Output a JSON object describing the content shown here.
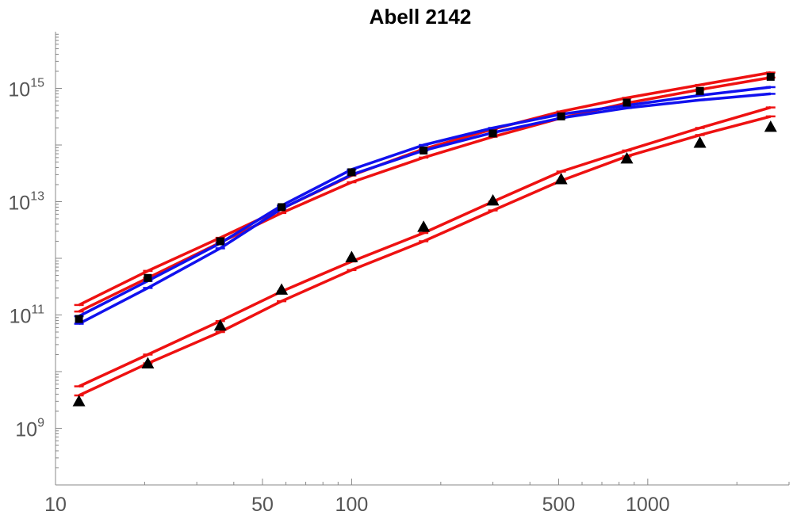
{
  "chart_data": {
    "type": "line",
    "title": "Abell 2142",
    "xlabel": "",
    "ylabel": "",
    "x_scale": "log",
    "y_scale": "log",
    "xlim": [
      10,
      3000
    ],
    "ylim": [
      100000000.0,
      1e+16
    ],
    "x_ticks": [
      {
        "value": 10,
        "label": "10"
      },
      {
        "value": 50,
        "label": "50"
      },
      {
        "value": 100,
        "label": "100"
      },
      {
        "value": 500,
        "label": "500"
      },
      {
        "value": 1000,
        "label": "1000"
      }
    ],
    "y_ticks": [
      {
        "value": 1000000000.0,
        "base": "10",
        "exp": "9"
      },
      {
        "value": 100000000000.0,
        "base": "10",
        "exp": "11"
      },
      {
        "value": 10000000000000.0,
        "base": "10",
        "exp": "13"
      },
      {
        "value": 1000000000000000.0,
        "base": "10",
        "exp": "15"
      }
    ],
    "grid": false,
    "colors": {
      "red": "#ee1111",
      "blue": "#1111ee",
      "black": "#000000"
    },
    "x": [
      12,
      20.5,
      36,
      58,
      100,
      175,
      300,
      510,
      850,
      1500,
      2600
    ],
    "series": [
      {
        "color": "red",
        "values": [
          150000000000.0,
          600000000000.0,
          2300000000000.0,
          7500000000000.0,
          29000000000000.0,
          85000000000000.0,
          190000000000000.0,
          390000000000000.0,
          680000000000000.0,
          1150000000000000.0,
          1900000000000000.0
        ]
      },
      {
        "color": "red",
        "values": [
          115000000000.0,
          450000000000.0,
          1900000000000.0,
          6300000000000.0,
          22000000000000.0,
          60000000000000.0,
          140000000000000.0,
          300000000000000.0,
          550000000000000.0,
          950000000000000.0,
          1550000000000000.0
        ]
      },
      {
        "color": "blue",
        "values": [
          95000000000.0,
          400000000000.0,
          1850000000000.0,
          8500000000000.0,
          37000000000000.0,
          100000000000000.0,
          200000000000000.0,
          350000000000000.0,
          500000000000000.0,
          750000000000000.0,
          1050000000000000.0
        ]
      },
      {
        "color": "blue",
        "values": [
          70000000000.0,
          300000000000.0,
          1500000000000.0,
          7500000000000.0,
          30000000000000.0,
          80000000000000.0,
          165000000000000.0,
          300000000000000.0,
          450000000000000.0,
          620000000000000.0,
          800000000000000.0
        ]
      },
      {
        "color": "red",
        "values": [
          5500000000.0,
          20000000000.0,
          78000000000.0,
          260000000000.0,
          880000000000.0,
          2800000000000.0,
          10000000000000.0,
          34000000000000.0,
          80000000000000.0,
          200000000000000.0,
          460000000000000.0
        ]
      },
      {
        "color": "red",
        "values": [
          3800000000.0,
          14000000000.0,
          50000000000.0,
          175000000000.0,
          620000000000.0,
          2000000000000.0,
          7000000000000.0,
          23500000000000.0,
          63000000000000.0,
          150000000000000.0,
          320000000000000.0
        ]
      }
    ],
    "markers": [
      {
        "shape": "square",
        "color": "black",
        "x": [
          12,
          20.5,
          36,
          58,
          100,
          175,
          300,
          510,
          850,
          1500,
          2600
        ],
        "values": [
          85000000000.0,
          450000000000.0,
          2000000000000.0,
          8000000000000.0,
          33000000000000.0,
          80000000000000.0,
          160000000000000.0,
          320000000000000.0,
          560000000000000.0,
          900000000000000.0,
          1600000000000000.0
        ]
      },
      {
        "shape": "triangle",
        "color": "black",
        "x": [
          12,
          20.5,
          36,
          58,
          100,
          175,
          300,
          510,
          850,
          1500,
          2600
        ],
        "values": [
          3000000000.0,
          14000000000.0,
          65000000000.0,
          280000000000.0,
          1050000000000.0,
          3600000000000.0,
          10500000000000.0,
          25000000000000.0,
          58000000000000.0,
          110000000000000.0,
          210000000000000.0
        ]
      }
    ]
  }
}
